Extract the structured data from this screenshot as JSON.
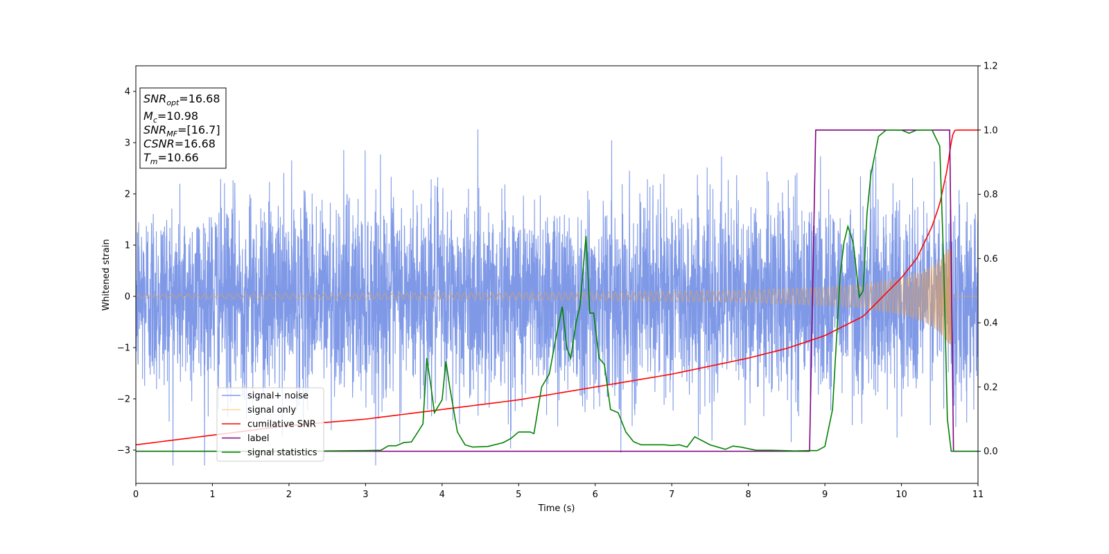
{
  "chart_data": {
    "type": "line",
    "xlabel": "Time (s)",
    "ylabel": "Whitened strain",
    "xlim": [
      0,
      11
    ],
    "ylim_left": [
      -3.65,
      4.5
    ],
    "ylim_right": [
      -0.1,
      1.2
    ],
    "x_ticks": [
      "0",
      "1",
      "2",
      "3",
      "4",
      "5",
      "6",
      "7",
      "8",
      "9",
      "10",
      "11"
    ],
    "y_left_ticks": [
      "−3",
      "−2",
      "−1",
      "0",
      "1",
      "2",
      "3",
      "4"
    ],
    "y_right_ticks": [
      "0.0",
      "0.2",
      "0.4",
      "0.6",
      "0.8",
      "1.0",
      "1.2"
    ],
    "info_box": {
      "snr_opt": {
        "base": "SNR",
        "sub": "opt",
        "value": "=16.68"
      },
      "mc": {
        "base": "M",
        "sub": "c",
        "value": "=10.98"
      },
      "snr_mf": {
        "base": "SNR",
        "sub": "MF",
        "value": "=[16.7]"
      },
      "csnr": {
        "base": "CSNR",
        "sub": "",
        "value": "=16.68"
      },
      "tm": {
        "base": "T",
        "sub": "m",
        "value": "=10.66"
      }
    },
    "legend": {
      "placement": "lower-left",
      "entries": [
        {
          "label": "signal+ noise",
          "color": "#7893e6"
        },
        {
          "label": "signal only",
          "color": "#ffc87a"
        },
        {
          "label": "cumilative SNR",
          "color": "#ff0000"
        },
        {
          "label": "label",
          "color": "#800080"
        },
        {
          "label": "signal statistics",
          "color": "#008000"
        }
      ]
    },
    "series": [
      {
        "name": "signal+ noise",
        "axis": "left",
        "description": "white Gaussian noise, approx std 1, spanning roughly −3.3 to 4.2 over 0–11 s",
        "color": "#7893e6"
      },
      {
        "name": "signal only",
        "axis": "left",
        "color": "#ffc87a",
        "amplitude_envelope": {
          "x": [
            0,
            3,
            6,
            8,
            9,
            9.5,
            10,
            10.3,
            10.5,
            10.6,
            10.66
          ],
          "y": [
            0.04,
            0.06,
            0.08,
            0.12,
            0.18,
            0.23,
            0.36,
            0.5,
            0.7,
            0.9,
            1.0
          ]
        },
        "end_time": 10.66
      },
      {
        "name": "cumilative SNR",
        "axis": "right",
        "color": "#ff0000",
        "x": [
          0,
          1,
          2,
          3,
          4,
          5,
          6,
          7,
          8,
          8.5,
          9,
          9.5,
          10,
          10.2,
          10.4,
          10.5,
          10.6,
          10.66,
          10.7,
          11
        ],
        "y": [
          0.02,
          0.05,
          0.08,
          0.1,
          0.13,
          0.16,
          0.2,
          0.24,
          0.29,
          0.32,
          0.36,
          0.42,
          0.54,
          0.6,
          0.7,
          0.77,
          0.88,
          0.98,
          1.0,
          1.0
        ]
      },
      {
        "name": "label",
        "axis": "right",
        "color": "#800080",
        "x": [
          0,
          8.8,
          8.88,
          10.63,
          10.68,
          11
        ],
        "y": [
          0,
          0,
          1,
          1,
          0,
          0
        ]
      },
      {
        "name": "signal statistics",
        "axis": "right",
        "color": "#008000",
        "x": [
          0,
          1,
          2,
          3,
          3.2,
          3.3,
          3.4,
          3.5,
          3.6,
          3.7,
          3.75,
          3.8,
          3.85,
          3.9,
          4.0,
          4.05,
          4.1,
          4.2,
          4.3,
          4.4,
          4.6,
          4.8,
          4.9,
          5.0,
          5.1,
          5.15,
          5.2,
          5.3,
          5.4,
          5.5,
          5.57,
          5.63,
          5.68,
          5.75,
          5.8,
          5.88,
          5.93,
          5.98,
          6.05,
          6.12,
          6.2,
          6.3,
          6.4,
          6.5,
          6.6,
          6.7,
          6.8,
          6.9,
          7.0,
          7.1,
          7.2,
          7.3,
          7.5,
          7.7,
          7.8,
          7.9,
          8.1,
          8.3,
          8.6,
          8.8,
          8.9,
          9.0,
          9.1,
          9.2,
          9.25,
          9.3,
          9.37,
          9.45,
          9.5,
          9.55,
          9.6,
          9.7,
          9.8,
          9.9,
          10.0,
          10.1,
          10.2,
          10.3,
          10.4,
          10.5,
          10.55,
          10.6,
          10.65,
          10.7,
          11
        ],
        "y": [
          0,
          0,
          0,
          0.002,
          0.003,
          0.017,
          0.017,
          0.027,
          0.029,
          0.066,
          0.085,
          0.29,
          0.21,
          0.12,
          0.16,
          0.28,
          0.2,
          0.06,
          0.02,
          0.013,
          0.015,
          0.027,
          0.04,
          0.06,
          0.06,
          0.06,
          0.055,
          0.2,
          0.24,
          0.37,
          0.45,
          0.32,
          0.29,
          0.4,
          0.45,
          0.67,
          0.43,
          0.43,
          0.29,
          0.27,
          0.13,
          0.12,
          0.06,
          0.03,
          0.02,
          0.02,
          0.02,
          0.02,
          0.018,
          0.02,
          0.013,
          0.045,
          0.02,
          0.006,
          0.016,
          0.013,
          0.003,
          0.003,
          0.001,
          0.002,
          0.002,
          0.015,
          0.13,
          0.55,
          0.65,
          0.7,
          0.65,
          0.48,
          0.5,
          0.74,
          0.86,
          0.98,
          1.0,
          1.0,
          1.0,
          0.99,
          1.0,
          1.0,
          1.0,
          0.95,
          0.6,
          0.1,
          0.0,
          0.0,
          0.0
        ]
      }
    ]
  }
}
